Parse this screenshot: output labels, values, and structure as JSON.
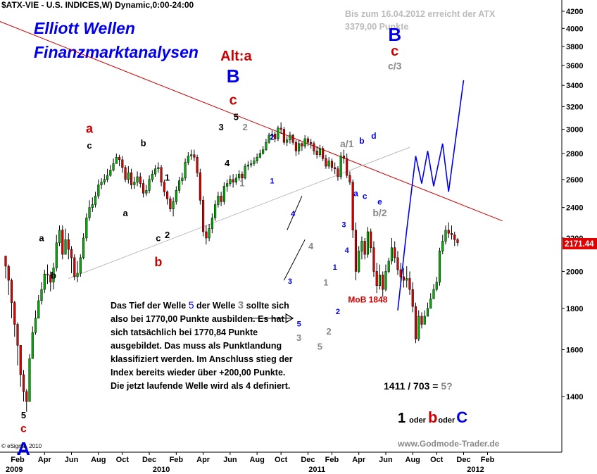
{
  "chart_data": {
    "type": "candlestick",
    "title": "$ATX-VIE - U.S. INDICES,W) Dynamic,0:00-24:00",
    "brand_top": "Elliott Wellen",
    "brand_bottom": "Finanzmarktanalysen",
    "header_note": [
      "Bis zum 16.04.2012 erreicht der ATX",
      "3379,00 Punkte"
    ],
    "y_axis": {
      "scale": "log",
      "ylim": [
        1200,
        4300
      ],
      "ticks": [
        1400,
        1600,
        1800,
        2000,
        2200,
        2400,
        2600,
        2800,
        3000,
        3200,
        3400,
        3600,
        3800,
        4000,
        4200
      ]
    },
    "x_axis": {
      "labels": [
        "Feb",
        "Apr",
        "Jun",
        "Aug",
        "Oct",
        "Dec",
        "Feb",
        "Apr",
        "Jun",
        "Aug",
        "Oct",
        "Dec",
        "Feb",
        "Apr",
        "Jun",
        "Aug",
        "Oct",
        "Dec",
        "Feb"
      ],
      "label_weeks": [
        4,
        13,
        22,
        31,
        39,
        48,
        57,
        66,
        75,
        84,
        92,
        101,
        109,
        118,
        127,
        136,
        144,
        153,
        161
      ],
      "years": [
        "2009",
        "2010",
        "2011",
        "2012"
      ],
      "year_weeks": [
        0,
        52,
        104,
        157
      ]
    },
    "last_price": "2171.44",
    "candle_colors": {
      "up": "#00b000",
      "down": "#e00000"
    },
    "series": [
      {
        "name": "ATX",
        "close": [
          2030,
          1950,
          1830,
          1720,
          1620,
          1490,
          1420,
          1380,
          1560,
          1680,
          1750,
          1840,
          1900,
          1985,
          1980,
          1940,
          2020,
          2170,
          2250,
          2100,
          2190,
          2130,
          2080,
          1970,
          1990,
          2080,
          2200,
          2330,
          2400,
          2420,
          2480,
          2560,
          2580,
          2600,
          2630,
          2670,
          2720,
          2770,
          2750,
          2690,
          2600,
          2650,
          2560,
          2580,
          2620,
          2570,
          2500,
          2520,
          2600,
          2640,
          2680,
          2690,
          2580,
          2510,
          2460,
          2390,
          2440,
          2520,
          2590,
          2610,
          2730,
          2780,
          2790,
          2770,
          2650,
          2450,
          2240,
          2200,
          2260,
          2330,
          2420,
          2480,
          2440,
          2550,
          2570,
          2600,
          2580,
          2610,
          2640,
          2610,
          2700,
          2710,
          2720,
          2740,
          2770,
          2800,
          2830,
          2890,
          2950,
          2960,
          2920,
          3010,
          3000,
          2890,
          2910,
          2950,
          2890,
          2820,
          2880,
          2860,
          2920,
          2890,
          2880,
          2820,
          2790,
          2840,
          2760,
          2700,
          2740,
          2690,
          2680,
          2620,
          2780,
          2760,
          2630,
          2580,
          2250,
          2000,
          2120,
          2180,
          2100,
          2240,
          2140,
          2000,
          1920,
          1980,
          1900,
          2000,
          2060,
          2140,
          2080,
          2010,
          1970,
          1950,
          1960,
          1900,
          1810,
          1650,
          1760,
          1720,
          1760,
          1800,
          1850,
          1900,
          1940,
          2120,
          2180,
          2250,
          2230,
          2220,
          2190,
          2171
        ],
        "high": [
          2090,
          2040,
          1960,
          1840,
          1730,
          1620,
          1510,
          1430,
          1580,
          1710,
          1790,
          1870,
          1940,
          2010,
          2040,
          2000,
          2050,
          2220,
          2280,
          2280,
          2260,
          2230,
          2150,
          2100,
          2060,
          2100,
          2230,
          2360,
          2450,
          2470,
          2510,
          2600,
          2610,
          2640,
          2680,
          2710,
          2760,
          2800,
          2790,
          2780,
          2710,
          2700,
          2680,
          2620,
          2660,
          2650,
          2600,
          2560,
          2630,
          2670,
          2710,
          2730,
          2710,
          2600,
          2520,
          2480,
          2470,
          2550,
          2620,
          2650,
          2760,
          2810,
          2830,
          2830,
          2790,
          2680,
          2480,
          2280,
          2290,
          2360,
          2450,
          2510,
          2510,
          2580,
          2600,
          2630,
          2640,
          2640,
          2670,
          2660,
          2720,
          2740,
          2750,
          2770,
          2800,
          2830,
          2860,
          2920,
          2970,
          2990,
          2980,
          3030,
          3060,
          3020,
          2940,
          2980,
          2960,
          2910,
          2910,
          2890,
          2950,
          2940,
          2920,
          2900,
          2860,
          2870,
          2860,
          2790,
          2770,
          2760,
          2730,
          2700,
          2810,
          2830,
          2800,
          2660,
          2600,
          2300,
          2150,
          2210,
          2200,
          2270,
          2260,
          2180,
          2050,
          2040,
          2000,
          2040,
          2080,
          2200,
          2180,
          2120,
          2050,
          2020,
          2030,
          2000,
          1940,
          1830,
          1790,
          1780,
          1790,
          1830,
          1880,
          1930,
          1970,
          2140,
          2220,
          2280,
          2300,
          2280,
          2240,
          2200
        ],
        "low": [
          1960,
          1870,
          1750,
          1660,
          1530,
          1440,
          1380,
          1340,
          1380,
          1560,
          1670,
          1750,
          1820,
          1880,
          1930,
          1890,
          1900,
          2000,
          2150,
          2070,
          2100,
          2070,
          1990,
          1950,
          1940,
          1970,
          2070,
          2180,
          2310,
          2370,
          2400,
          2460,
          2530,
          2560,
          2580,
          2620,
          2660,
          2720,
          2700,
          2650,
          2580,
          2570,
          2530,
          2530,
          2550,
          2540,
          2470,
          2480,
          2500,
          2580,
          2620,
          2650,
          2550,
          2480,
          2420,
          2370,
          2340,
          2420,
          2500,
          2560,
          2590,
          2710,
          2750,
          2740,
          2620,
          2420,
          2210,
          2160,
          2180,
          2230,
          2310,
          2400,
          2410,
          2420,
          2510,
          2550,
          2540,
          2560,
          2590,
          2580,
          2600,
          2670,
          2690,
          2700,
          2720,
          2760,
          2790,
          2820,
          2880,
          2910,
          2890,
          2900,
          2960,
          2870,
          2860,
          2880,
          2870,
          2780,
          2790,
          2820,
          2840,
          2860,
          2840,
          2790,
          2760,
          2770,
          2740,
          2680,
          2680,
          2660,
          2640,
          2590,
          2600,
          2720,
          2610,
          2560,
          2200,
          1950,
          1990,
          2070,
          2070,
          2080,
          2110,
          1970,
          1880,
          1900,
          1860,
          1890,
          1990,
          2040,
          2050,
          1980,
          1940,
          1910,
          1910,
          1870,
          1780,
          1630,
          1640,
          1700,
          1720,
          1760,
          1810,
          1850,
          1890,
          1920,
          2100,
          2160,
          2200,
          2190,
          2150,
          2150
        ]
      }
    ],
    "trendlines": [
      {
        "name": "upper-resistance",
        "color": "#cc0000",
        "points": [
          [
            -2,
            4080
          ],
          [
            166,
            2310
          ]
        ]
      },
      {
        "name": "lower-channel",
        "color": "#bbbbbb",
        "points": [
          [
            21,
            1960
          ],
          [
            135,
            2850
          ]
        ]
      },
      {
        "name": "projection",
        "color": "#0000ee",
        "points": [
          [
            131,
            1790
          ],
          [
            134,
            2250
          ],
          [
            137,
            2780
          ],
          [
            139,
            2570
          ],
          [
            141,
            2820
          ],
          [
            143,
            2550
          ],
          [
            146,
            2880
          ],
          [
            148,
            2510
          ],
          [
            153,
            3450
          ]
        ]
      },
      {
        "name": "wave3-channel",
        "color": "#000000",
        "points": [
          [
            93,
            1950
          ],
          [
            100,
            2190
          ]
        ]
      },
      {
        "name": "wave3-channel-2",
        "color": "#000000",
        "points": [
          [
            94,
            2250
          ],
          [
            99,
            2480
          ]
        ]
      },
      {
        "name": "arrow",
        "color": "#000000",
        "points": [
          [
            82,
            1750
          ],
          [
            96,
            1750
          ]
        ]
      }
    ],
    "wave_labels": [
      {
        "text": "5",
        "week": 6,
        "price": 1315,
        "color": "#000000",
        "size": 13
      },
      {
        "text": "c",
        "week": 6,
        "price": 1265,
        "color": "#cc0000",
        "size": 16
      },
      {
        "text": "A",
        "week": 6,
        "price": 1185,
        "color": "#0000ee",
        "size": 26
      },
      {
        "text": "b",
        "week": 16,
        "price": 1960,
        "color": "#000000",
        "size": 13
      },
      {
        "text": "a",
        "week": 12,
        "price": 2180,
        "color": "#000000",
        "size": 13
      },
      {
        "text": "c",
        "week": 28,
        "price": 2840,
        "color": "#000000",
        "size": 13
      },
      {
        "text": "a",
        "week": 28,
        "price": 2970,
        "color": "#cc0000",
        "size": 18
      },
      {
        "text": "a",
        "week": 40,
        "price": 2340,
        "color": "#000000",
        "size": 13
      },
      {
        "text": "b",
        "week": 46,
        "price": 2860,
        "color": "#000000",
        "size": 13
      },
      {
        "text": "1",
        "week": 54,
        "price": 2590,
        "color": "#000000",
        "size": 13
      },
      {
        "text": "c",
        "week": 51,
        "price": 2180,
        "color": "#000000",
        "size": 13
      },
      {
        "text": "2",
        "week": 54,
        "price": 2200,
        "color": "#000000",
        "size": 13
      },
      {
        "text": "b",
        "week": 51,
        "price": 2030,
        "color": "#cc0000",
        "size": 18
      },
      {
        "text": "3",
        "week": 72,
        "price": 2990,
        "color": "#000000",
        "size": 13
      },
      {
        "text": "4",
        "week": 74,
        "price": 2700,
        "color": "#000000",
        "size": 13
      },
      {
        "text": "5",
        "week": 77,
        "price": 3080,
        "color": "#000000",
        "size": 13
      },
      {
        "text": "c",
        "week": 76,
        "price": 3220,
        "color": "#cc0000",
        "size": 20
      },
      {
        "text": "B",
        "week": 76,
        "price": 3430,
        "color": "#0000ee",
        "size": 26
      },
      {
        "text": "Alt:a",
        "week": 77,
        "price": 3650,
        "color": "#cc0000",
        "size": 20
      },
      {
        "text": "2",
        "week": 80,
        "price": 2990,
        "color": "#888888",
        "size": 13
      },
      {
        "text": "1",
        "week": 79,
        "price": 2550,
        "color": "#888888",
        "size": 13
      },
      {
        "text": "2",
        "week": 89,
        "price": 2910,
        "color": "#0000ee",
        "size": 11
      },
      {
        "text": "1",
        "week": 89,
        "price": 2570,
        "color": "#0000ee",
        "size": 11
      },
      {
        "text": "4",
        "week": 96,
        "price": 2340,
        "color": "#0000ee",
        "size": 11
      },
      {
        "text": "3",
        "week": 95,
        "price": 1930,
        "color": "#0000ee",
        "size": 11
      },
      {
        "text": "5",
        "week": 98,
        "price": 1710,
        "color": "#0000ee",
        "size": 11
      },
      {
        "text": "3",
        "week": 98,
        "price": 1640,
        "color": "#888888",
        "size": 13
      },
      {
        "text": "4",
        "week": 102,
        "price": 2130,
        "color": "#888888",
        "size": 13
      },
      {
        "text": "1",
        "week": 107,
        "price": 1920,
        "color": "#888888",
        "size": 13
      },
      {
        "text": "2",
        "week": 108,
        "price": 1670,
        "color": "#888888",
        "size": 13
      },
      {
        "text": "5",
        "week": 105,
        "price": 1600,
        "color": "#888888",
        "size": 13
      },
      {
        "text": "1",
        "week": 110,
        "price": 2010,
        "color": "#0000ee",
        "size": 11
      },
      {
        "text": "2",
        "week": 111,
        "price": 1770,
        "color": "#0000ee",
        "size": 11
      },
      {
        "text": "3",
        "week": 113,
        "price": 2270,
        "color": "#0000ee",
        "size": 11
      },
      {
        "text": "4",
        "week": 114,
        "price": 2110,
        "color": "#0000ee",
        "size": 11
      },
      {
        "text": "a/1",
        "week": 114,
        "price": 2850,
        "color": "#888888",
        "size": 14
      },
      {
        "text": "b",
        "week": 119,
        "price": 2880,
        "color": "#0000ee",
        "size": 12
      },
      {
        "text": "d",
        "week": 123,
        "price": 2920,
        "color": "#0000ee",
        "size": 12
      },
      {
        "text": "a",
        "week": 117,
        "price": 2480,
        "color": "#0000ee",
        "size": 12
      },
      {
        "text": "c",
        "week": 120,
        "price": 2460,
        "color": "#0000ee",
        "size": 12
      },
      {
        "text": "e",
        "week": 125,
        "price": 2420,
        "color": "#0000ee",
        "size": 12
      },
      {
        "text": "b/2",
        "week": 125,
        "price": 2340,
        "color": "#888888",
        "size": 14
      },
      {
        "text": "c/3",
        "week": 130,
        "price": 3560,
        "color": "#888888",
        "size": 14
      },
      {
        "text": "c",
        "week": 130,
        "price": 3700,
        "color": "#cc0000",
        "size": 20
      },
      {
        "text": "B",
        "week": 130,
        "price": 3860,
        "color": "#0000ee",
        "size": 26
      },
      {
        "text": "MoB 1848",
        "week": 121,
        "price": 1830,
        "color": "#cc0000",
        "size": 12
      }
    ],
    "annotation": {
      "lines": [
        [
          "Das Tief der Welle ",
          "5",
          " der Welle ",
          "3",
          " sollte sich"
        ],
        [
          "also bei 1770,00 Punkte ausbilden. Es hat"
        ],
        [
          "sich tatsächlich bei 1770,84 Punkte"
        ],
        [
          "ausgebildet. Das muss als Punktlandung"
        ],
        [
          "klassifiziert werden. Im Anschluss stieg der"
        ],
        [
          "Index bereits wieder über +200,00 Punkte."
        ],
        [
          "Die jetzt laufende Welle wird als 4 definiert."
        ]
      ]
    },
    "ratio_text": {
      "main": "1411 / 703 = ",
      "tail": "5?"
    },
    "scenario": {
      "one": "1",
      "oder1": "oder",
      "b": "b",
      "oder2": "oder",
      "C": "C"
    },
    "copyright": "© eSignal, 2010",
    "watermark": "www.Godmode-Trader.de"
  }
}
